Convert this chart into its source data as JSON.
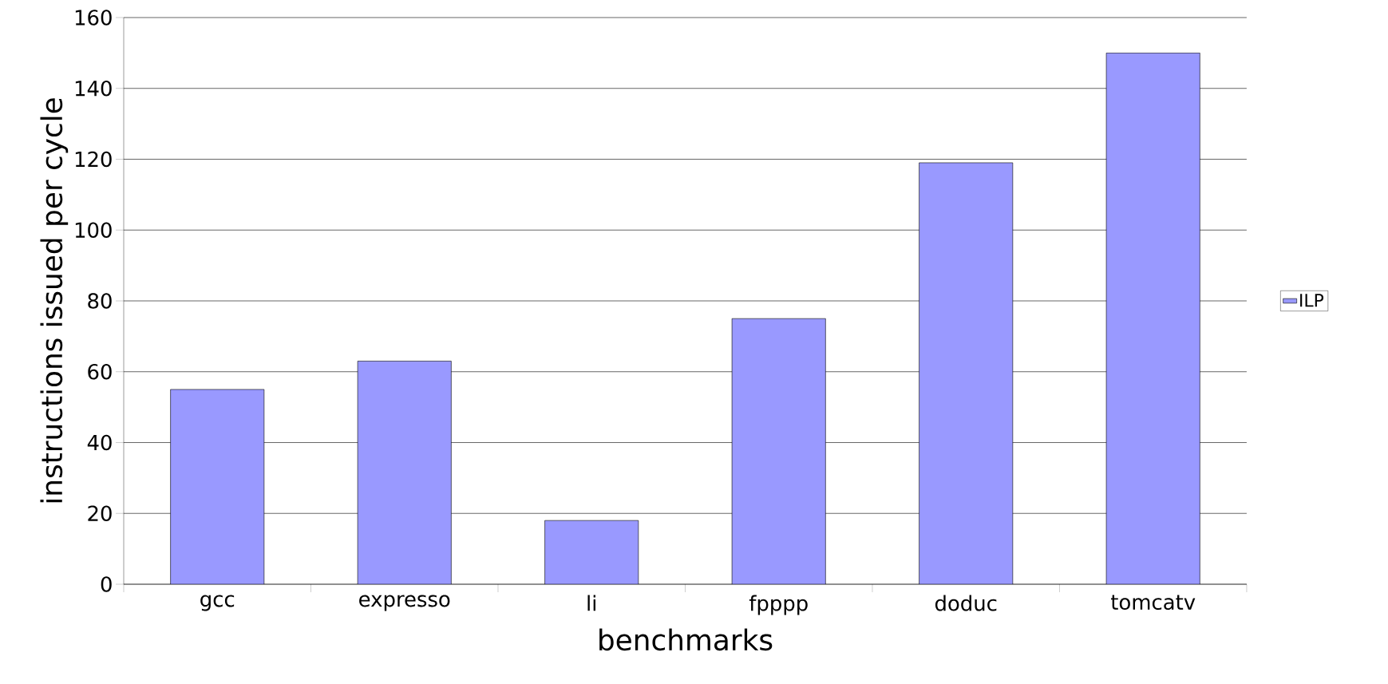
{
  "chart_data": {
    "type": "bar",
    "xlabel": "benchmarks",
    "ylabel": "instructions issued per cycle",
    "categories": [
      "gcc",
      "expresso",
      "li",
      "fpppp",
      "doduc",
      "tomcatv"
    ],
    "series": [
      {
        "name": "ILP",
        "color": "#9999ff",
        "values": [
          55,
          63,
          18,
          75,
          119,
          150
        ]
      }
    ],
    "ylim": [
      0,
      160
    ],
    "yticks": [
      0,
      20,
      40,
      60,
      80,
      100,
      120,
      140,
      160
    ],
    "grid": "y",
    "legend": "right"
  }
}
